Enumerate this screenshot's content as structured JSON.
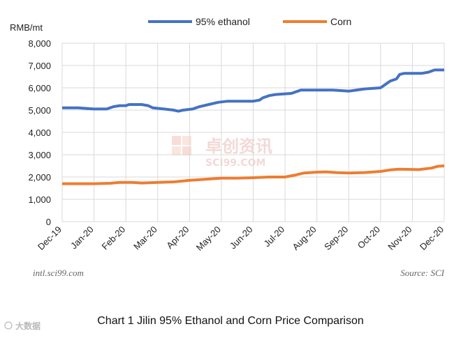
{
  "chart_data": {
    "type": "line",
    "unit_label": "RMB/mt",
    "ylim": [
      0,
      8000
    ],
    "yticks": [
      "0",
      "1,000",
      "2,000",
      "3,000",
      "4,000",
      "5,000",
      "6,000",
      "7,000",
      "8,000"
    ],
    "categories": [
      "Dec-19",
      "Jan-20",
      "Feb-20",
      "Mar-20",
      "Apr-20",
      "May-20",
      "Jun-20",
      "Jul-20",
      "Aug-20",
      "Sep-20",
      "Oct-20",
      "Nov-20",
      "Dec-20"
    ],
    "colors": {
      "ethanol": "#4472C4",
      "corn": "#ED7D31"
    },
    "series": [
      {
        "name": "95% ethanol",
        "key": "ethanol",
        "points": [
          [
            0,
            5100
          ],
          [
            0.5,
            5100
          ],
          [
            1,
            5050
          ],
          [
            1.4,
            5050
          ],
          [
            1.6,
            5150
          ],
          [
            1.8,
            5200
          ],
          [
            2.0,
            5200
          ],
          [
            2.1,
            5250
          ],
          [
            2.5,
            5250
          ],
          [
            2.7,
            5200
          ],
          [
            2.85,
            5100
          ],
          [
            3.2,
            5050
          ],
          [
            3.5,
            5000
          ],
          [
            3.65,
            4950
          ],
          [
            3.8,
            5000
          ],
          [
            4.1,
            5050
          ],
          [
            4.3,
            5150
          ],
          [
            4.6,
            5250
          ],
          [
            4.9,
            5350
          ],
          [
            5.2,
            5400
          ],
          [
            6.0,
            5400
          ],
          [
            6.2,
            5450
          ],
          [
            6.3,
            5550
          ],
          [
            6.5,
            5650
          ],
          [
            6.7,
            5700
          ],
          [
            7.2,
            5750
          ],
          [
            7.5,
            5900
          ],
          [
            8.0,
            5900
          ],
          [
            8.5,
            5900
          ],
          [
            9.0,
            5850
          ],
          [
            9.5,
            5950
          ],
          [
            10.0,
            6000
          ],
          [
            10.1,
            6100
          ],
          [
            10.3,
            6300
          ],
          [
            10.5,
            6400
          ],
          [
            10.6,
            6600
          ],
          [
            10.75,
            6650
          ],
          [
            11.3,
            6650
          ],
          [
            11.5,
            6700
          ],
          [
            11.7,
            6800
          ],
          [
            12.0,
            6800
          ]
        ]
      },
      {
        "name": "Corn",
        "key": "corn",
        "points": [
          [
            0,
            1700
          ],
          [
            1.0,
            1700
          ],
          [
            1.5,
            1720
          ],
          [
            1.8,
            1760
          ],
          [
            2.2,
            1760
          ],
          [
            2.5,
            1730
          ],
          [
            3.0,
            1760
          ],
          [
            3.5,
            1780
          ],
          [
            4.0,
            1850
          ],
          [
            4.5,
            1900
          ],
          [
            5.0,
            1950
          ],
          [
            5.5,
            1950
          ],
          [
            6.0,
            1970
          ],
          [
            6.5,
            2000
          ],
          [
            7.0,
            2000
          ],
          [
            7.3,
            2080
          ],
          [
            7.6,
            2180
          ],
          [
            8.0,
            2220
          ],
          [
            8.3,
            2230
          ],
          [
            8.6,
            2200
          ],
          [
            9.0,
            2180
          ],
          [
            9.5,
            2200
          ],
          [
            10.0,
            2250
          ],
          [
            10.3,
            2320
          ],
          [
            10.6,
            2350
          ],
          [
            11.2,
            2330
          ],
          [
            11.6,
            2400
          ],
          [
            11.8,
            2480
          ],
          [
            12.0,
            2500
          ]
        ]
      }
    ]
  },
  "watermark": {
    "cn": "卓创资讯",
    "en": "SCI99.COM"
  },
  "footer": {
    "left": "intl.sci99.com",
    "right": "Source: SCI",
    "caption": "Chart 1 Jilin 95% Ethanol and Corn Price Comparison",
    "corner_mark": "大数据"
  }
}
